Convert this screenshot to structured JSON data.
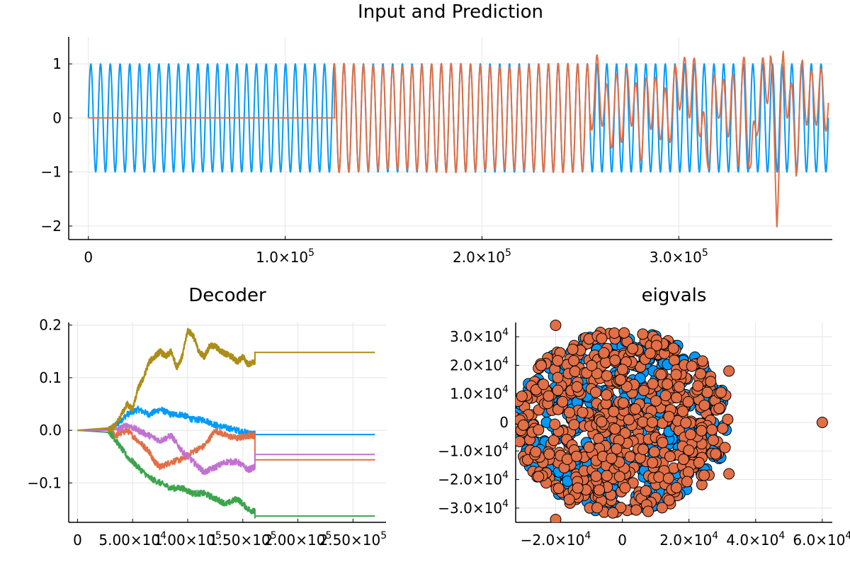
{
  "chart_data": [
    {
      "type": "line",
      "title": "Input and Prediction",
      "xlim": [
        -10000,
        378000
      ],
      "ylim": [
        -2.25,
        1.5
      ],
      "grid": true,
      "legend": "none",
      "xticks": [
        {
          "value": 0,
          "mantissa": "0",
          "exp": ""
        },
        {
          "value": 100000,
          "mantissa": "1.0×10",
          "exp": "5"
        },
        {
          "value": 200000,
          "mantissa": "2.0×10",
          "exp": "5"
        },
        {
          "value": 300000,
          "mantissa": "3.0×10",
          "exp": "5"
        }
      ],
      "yticks": [
        {
          "value": 1,
          "label": "1"
        },
        {
          "value": 0,
          "label": "0"
        },
        {
          "value": -1,
          "label": "−1"
        },
        {
          "value": -2,
          "label": "−2"
        }
      ],
      "series": [
        {
          "color": "#009AFA",
          "kind": "sine",
          "x_start": 0,
          "x_end": 376000,
          "amplitude": 1,
          "cycles": 76
        },
        {
          "color": "#E26F46",
          "kind": "sine_then_free",
          "x_zero_until": 125000,
          "x_end": 376000,
          "cycles_per_period": 76,
          "period_length": 376000,
          "drift_from": 255000,
          "late_y": [
            0.3,
            0.9,
            0.5,
            -0.2,
            0.4,
            0.1,
            0.8,
            0.2,
            -0.4,
            0.6,
            0.3,
            0.2,
            -0.1,
            0.5,
            1.05,
            0.7,
            0.9,
            0.3,
            -1.1,
            0.2,
            0.8,
            0.0,
            0.6,
            -0.5,
            1.1,
            -1.55,
            0.4,
            0.9,
            1.4,
            -2.15,
            1.2,
            0.5,
            -0.8,
            0.9,
            0.4,
            0.6,
            0.5,
            0.4
          ]
        }
      ]
    },
    {
      "type": "line",
      "title": "Decoder",
      "xlim": [
        -8000,
        280000
      ],
      "ylim": [
        -0.175,
        0.205
      ],
      "grid": true,
      "legend": "none",
      "xticks": [
        {
          "value": 0,
          "mantissa": "0",
          "exp": ""
        },
        {
          "value": 50000,
          "mantissa": "5.00×10",
          "exp": "4"
        },
        {
          "value": 100000,
          "mantissa": "1.00×10",
          "exp": "5"
        },
        {
          "value": 150000,
          "mantissa": "1.50×10",
          "exp": "5"
        },
        {
          "value": 200000,
          "mantissa": "2.00×10",
          "exp": "5"
        },
        {
          "value": 250000,
          "mantissa": "2.50×10",
          "exp": "5"
        }
      ],
      "yticks": [
        {
          "value": 0.2,
          "label": "0.2"
        },
        {
          "value": 0.1,
          "label": "0.1"
        },
        {
          "value": 0.0,
          "label": "0.0"
        },
        {
          "value": -0.1,
          "label": "−0.1"
        }
      ],
      "series": [
        {
          "color": "#009AFA",
          "x": [
            0,
            28000,
            35000,
            45000,
            55000,
            65000,
            75000,
            85000,
            95000,
            105000,
            115000,
            125000,
            135000,
            145000,
            155000,
            161000,
            161001,
            270000
          ],
          "y": [
            0,
            0,
            0.01,
            0.03,
            0.04,
            0.03,
            0.04,
            0.03,
            0.03,
            0.02,
            0.02,
            0.01,
            0.005,
            0.0,
            -0.005,
            -0.008,
            -0.008,
            -0.008
          ]
        },
        {
          "color": "#E26F46",
          "x": [
            0,
            28000,
            35000,
            45000,
            55000,
            65000,
            70000,
            75000,
            85000,
            95000,
            105000,
            115000,
            125000,
            135000,
            145000,
            155000,
            161000,
            161001,
            270000
          ],
          "y": [
            0,
            0,
            -0.01,
            0.0,
            -0.02,
            -0.04,
            -0.06,
            -0.07,
            -0.06,
            -0.055,
            -0.04,
            -0.03,
            0.0,
            -0.01,
            -0.015,
            -0.01,
            -0.01,
            -0.056,
            -0.056
          ]
        },
        {
          "color": "#3DA44D",
          "x": [
            0,
            28000,
            35000,
            45000,
            55000,
            65000,
            75000,
            85000,
            95000,
            105000,
            115000,
            125000,
            135000,
            145000,
            155000,
            161000,
            161001,
            270000
          ],
          "y": [
            0,
            0,
            -0.02,
            -0.05,
            -0.07,
            -0.09,
            -0.1,
            -0.11,
            -0.11,
            -0.12,
            -0.12,
            -0.13,
            -0.14,
            -0.13,
            -0.15,
            -0.155,
            -0.163,
            -0.163
          ]
        },
        {
          "color": "#C271D2",
          "x": [
            0,
            28000,
            35000,
            45000,
            55000,
            65000,
            75000,
            85000,
            95000,
            105000,
            115000,
            125000,
            135000,
            145000,
            155000,
            161000,
            161001,
            270000
          ],
          "y": [
            0,
            0,
            0.0,
            0.01,
            0.0,
            -0.01,
            -0.02,
            -0.01,
            -0.04,
            -0.06,
            -0.08,
            -0.07,
            -0.06,
            -0.06,
            -0.075,
            -0.07,
            -0.046,
            -0.046
          ]
        },
        {
          "color": "#AC8D18",
          "x": [
            0,
            28000,
            35000,
            45000,
            50000,
            55000,
            60000,
            65000,
            70000,
            75000,
            80000,
            85000,
            90000,
            95000,
            100000,
            105000,
            110000,
            115000,
            120000,
            125000,
            130000,
            135000,
            140000,
            145000,
            150000,
            155000,
            161000,
            161001,
            270000
          ],
          "y": [
            0,
            0,
            0.01,
            0.05,
            0.04,
            0.08,
            0.1,
            0.13,
            0.14,
            0.15,
            0.14,
            0.15,
            0.12,
            0.14,
            0.19,
            0.18,
            0.15,
            0.14,
            0.16,
            0.16,
            0.15,
            0.145,
            0.14,
            0.13,
            0.14,
            0.125,
            0.13,
            0.148,
            0.148
          ]
        }
      ]
    },
    {
      "type": "scatter",
      "title": "eigvals",
      "xlim": [
        -32000,
        63000
      ],
      "ylim": [
        -35000,
        35000
      ],
      "grid": true,
      "legend": "none",
      "xticks": [
        {
          "value": -20000,
          "mantissa": "−2.0×10",
          "exp": "4"
        },
        {
          "value": 0,
          "mantissa": "0",
          "exp": ""
        },
        {
          "value": 20000,
          "mantissa": "2.0×10",
          "exp": "4"
        },
        {
          "value": 40000,
          "mantissa": "4.0×10",
          "exp": "4"
        },
        {
          "value": 60000,
          "mantissa": "6.0×10",
          "exp": "4"
        }
      ],
      "yticks": [
        {
          "value": 30000,
          "mantissa": "3.0×10",
          "exp": "4"
        },
        {
          "value": 20000,
          "mantissa": "2.0×10",
          "exp": "4"
        },
        {
          "value": 10000,
          "mantissa": "1.0×10",
          "exp": "4"
        },
        {
          "value": 0,
          "mantissa": "0",
          "exp": ""
        },
        {
          "value": -10000,
          "mantissa": "−1.0×10",
          "exp": "4"
        },
        {
          "value": -20000,
          "mantissa": "−2.0×10",
          "exp": "4"
        },
        {
          "value": -30000,
          "mantissa": "−3.0×10",
          "exp": "4"
        }
      ],
      "series": [
        {
          "color": "#009AFA",
          "kind": "disk_cloud",
          "center": [
            0,
            0
          ],
          "radius": 32000,
          "count": 420
        },
        {
          "color": "#E26F46",
          "kind": "disk_cloud",
          "center": [
            0,
            0
          ],
          "radius": 32500,
          "count": 560,
          "outliers": [
            [
              -20000,
              34000
            ],
            [
              -20000,
              -34000
            ],
            [
              32000,
              18000
            ],
            [
              32000,
              -18000
            ],
            [
              60000,
              0
            ]
          ]
        }
      ]
    }
  ]
}
